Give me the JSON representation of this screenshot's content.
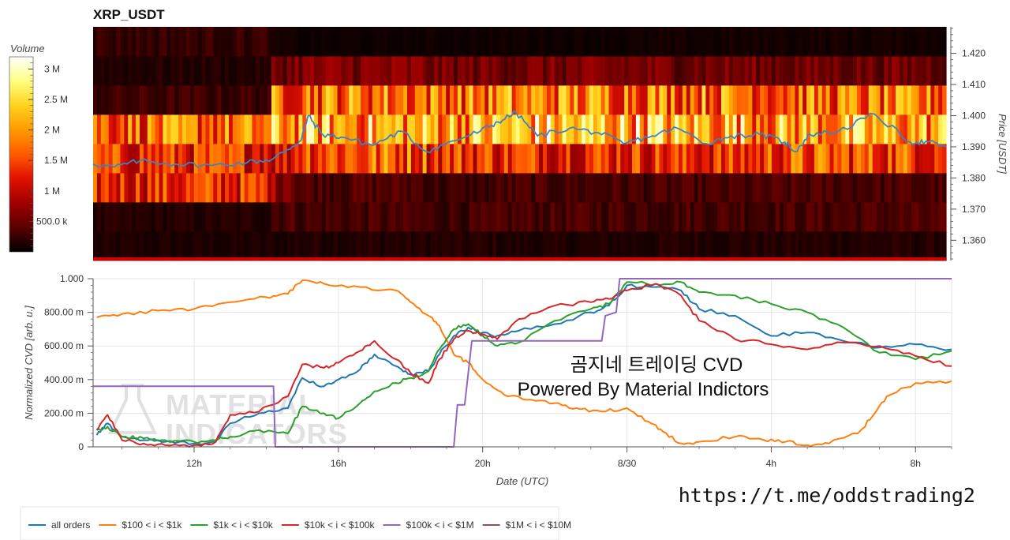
{
  "chart_data": [
    {
      "type": "heatmap",
      "title": "XRP_USDT",
      "ylabel": "Price [USDT]",
      "ylim": [
        1.3535,
        1.4285
      ],
      "y_ticks": [
        "1.360",
        "1.370",
        "1.380",
        "1.390",
        "1.400",
        "1.410",
        "1.420"
      ],
      "y_tick_values": [
        1.36,
        1.37,
        1.38,
        1.39,
        1.4,
        1.41,
        1.42
      ],
      "colorbar": {
        "label": "Volume",
        "range": [
          0,
          3200000
        ],
        "ticks": [
          "500.0 k",
          "1 M",
          "1.5 M",
          "2 M",
          "2.5 M",
          "3 M"
        ],
        "tick_values": [
          500000,
          1000000,
          1500000,
          2000000,
          2500000,
          3000000
        ],
        "palette": [
          "#000000",
          "#5a0000",
          "#a00000",
          "#e01000",
          "#ff5a00",
          "#ff9a00",
          "#ffd21e",
          "#ffff80",
          "#ffffff"
        ]
      },
      "time_range_hours": [
        9.2,
        33.0
      ],
      "row_levels": [
        1.356,
        1.365,
        1.375,
        1.385,
        1.395,
        1.405,
        1.415,
        1.425
      ],
      "segment_hours": [
        9.2,
        14.2,
        14.8,
        18.5,
        20.5,
        25.0,
        28.0,
        33.0
      ],
      "volume_profile": [
        [
          120000,
          120000,
          150000,
          150000,
          130000,
          150000,
          150000
        ],
        [
          150000,
          330000,
          300000,
          270000,
          310000,
          310000,
          320000
        ],
        [
          1300000,
          750000,
          350000,
          250000,
          300000,
          300000,
          320000
        ],
        [
          1300000,
          1100000,
          1600000,
          1400000,
          1350000,
          1300000,
          1500000
        ],
        [
          1650000,
          2000000,
          2050000,
          2100000,
          2200000,
          2100000,
          2000000
        ],
        [
          260000,
          1700000,
          1750000,
          1700000,
          1800000,
          1750000,
          1650000
        ],
        [
          150000,
          520000,
          600000,
          520000,
          540000,
          520000,
          500000
        ],
        [
          230000,
          80000,
          60000,
          70000,
          70000,
          80000,
          90000
        ]
      ],
      "series": [
        {
          "name": "Price",
          "color": "#3c83c6",
          "x": [
            9.2,
            9.8,
            10.5,
            11.5,
            12.5,
            13.5,
            14.2,
            14.6,
            15.0,
            15.2,
            15.6,
            16.2,
            17.0,
            17.8,
            18.5,
            19.3,
            20.0,
            20.5,
            21.0,
            21.6,
            22.5,
            23.3,
            24.0,
            24.8,
            25.5,
            26.3,
            27.0,
            27.8,
            28.5,
            28.8,
            29.2,
            30.0,
            31.0,
            32.0,
            32.5,
            33.0
          ],
          "y": [
            1.3845,
            1.3835,
            1.3855,
            1.3845,
            1.384,
            1.385,
            1.386,
            1.389,
            1.392,
            1.4,
            1.394,
            1.393,
            1.3905,
            1.395,
            1.3885,
            1.392,
            1.395,
            1.398,
            1.401,
            1.3935,
            1.396,
            1.3945,
            1.391,
            1.3935,
            1.396,
            1.391,
            1.3935,
            1.394,
            1.3915,
            1.3885,
            1.394,
            1.395,
            1.4005,
            1.3915,
            1.3915,
            1.39
          ]
        }
      ]
    },
    {
      "type": "line",
      "title": "",
      "xlabel": "Date (UTC)",
      "ylabel": "Normalized CVD [arb. u.]",
      "ylim": [
        0,
        1.0
      ],
      "xlim_hours": [
        9.2,
        33.0
      ],
      "x_ticks": [
        "12h",
        "16h",
        "20h",
        "8/30",
        "4h",
        "8h"
      ],
      "x_tick_hours": [
        12,
        16,
        20,
        24,
        28,
        32
      ],
      "y_ticks": [
        "0",
        "200.00 m",
        "400.00 m",
        "600.00 m",
        "800.00 m",
        "1.000"
      ],
      "y_tick_values": [
        0,
        0.2,
        0.4,
        0.6,
        0.8,
        1.0
      ],
      "legend_placement": "bottom-left",
      "grid": true,
      "series": [
        {
          "name": "all orders",
          "color": "#1f77b4",
          "x": [
            9.3,
            9.6,
            10.0,
            10.6,
            11.2,
            12.0,
            12.6,
            13.0,
            13.8,
            14.6,
            15.0,
            15.6,
            16.0,
            16.6,
            17.0,
            17.6,
            18.0,
            18.5,
            18.8,
            19.2,
            19.6,
            20.0,
            20.4,
            21.0,
            22.0,
            23.0,
            23.5,
            24.0,
            24.8,
            25.5,
            26.0,
            27.0,
            28.0,
            29.0,
            30.0,
            31.0,
            32.0,
            33.0
          ],
          "y": [
            0.07,
            0.14,
            0.06,
            0.04,
            0.03,
            0.02,
            0.03,
            0.14,
            0.2,
            0.23,
            0.41,
            0.36,
            0.4,
            0.46,
            0.55,
            0.48,
            0.43,
            0.45,
            0.55,
            0.66,
            0.71,
            0.68,
            0.66,
            0.69,
            0.73,
            0.8,
            0.84,
            0.96,
            0.95,
            0.93,
            0.82,
            0.78,
            0.66,
            0.68,
            0.63,
            0.59,
            0.61,
            0.58
          ]
        },
        {
          "name": "$100 < i < $1k",
          "color": "#ff7f0e",
          "x": [
            9.3,
            10.0,
            11.0,
            12.0,
            13.0,
            14.0,
            14.6,
            15.0,
            15.6,
            16.6,
            17.6,
            18.0,
            18.5,
            18.8,
            19.2,
            19.6,
            20.0,
            20.6,
            21.2,
            22.0,
            22.6,
            23.3,
            24.0,
            24.6,
            25.0,
            25.5,
            26.0,
            27.0,
            27.8,
            28.4,
            29.0,
            29.6,
            30.4,
            30.8,
            31.2,
            32.0,
            33.0
          ],
          "y": [
            0.77,
            0.79,
            0.81,
            0.82,
            0.86,
            0.89,
            0.91,
            0.99,
            0.97,
            0.95,
            0.93,
            0.86,
            0.78,
            0.72,
            0.55,
            0.5,
            0.4,
            0.31,
            0.28,
            0.26,
            0.23,
            0.21,
            0.23,
            0.15,
            0.09,
            0.02,
            0.03,
            0.06,
            0.04,
            0.03,
            0.01,
            0.02,
            0.08,
            0.18,
            0.3,
            0.38,
            0.39
          ]
        },
        {
          "name": "$1k < i < $10k",
          "color": "#2ca02c",
          "x": [
            9.3,
            9.6,
            10.0,
            10.6,
            11.2,
            12.0,
            12.6,
            13.0,
            13.8,
            14.6,
            15.0,
            15.6,
            16.0,
            16.6,
            17.0,
            17.6,
            18.0,
            18.5,
            18.8,
            19.2,
            19.6,
            20.0,
            20.4,
            21.0,
            22.0,
            23.0,
            23.5,
            24.0,
            24.8,
            25.5,
            26.0,
            27.0,
            28.0,
            29.0,
            30.0,
            31.0,
            32.0,
            33.0
          ],
          "y": [
            0.1,
            0.12,
            0.06,
            0.05,
            0.04,
            0.03,
            0.04,
            0.06,
            0.1,
            0.08,
            0.24,
            0.2,
            0.17,
            0.26,
            0.33,
            0.38,
            0.41,
            0.45,
            0.58,
            0.7,
            0.73,
            0.66,
            0.6,
            0.62,
            0.75,
            0.82,
            0.85,
            0.98,
            0.97,
            0.98,
            0.92,
            0.9,
            0.85,
            0.8,
            0.71,
            0.56,
            0.52,
            0.57
          ]
        },
        {
          "name": "$10k < i < $100k",
          "color": "#d62728",
          "x": [
            9.3,
            9.6,
            10.0,
            10.6,
            11.2,
            12.0,
            12.6,
            13.0,
            13.8,
            14.6,
            15.0,
            15.6,
            16.0,
            16.6,
            17.0,
            17.6,
            18.0,
            18.5,
            18.8,
            19.2,
            19.6,
            20.0,
            20.4,
            21.0,
            22.0,
            23.0,
            23.5,
            24.0,
            24.8,
            25.5,
            26.0,
            27.0,
            28.0,
            29.0,
            30.0,
            31.0,
            32.0,
            33.0
          ],
          "y": [
            0.1,
            0.19,
            0.04,
            0.02,
            0.01,
            0.01,
            0.03,
            0.19,
            0.21,
            0.3,
            0.49,
            0.47,
            0.5,
            0.57,
            0.63,
            0.52,
            0.44,
            0.38,
            0.52,
            0.64,
            0.69,
            0.67,
            0.64,
            0.76,
            0.84,
            0.86,
            0.88,
            0.93,
            0.97,
            0.9,
            0.75,
            0.64,
            0.61,
            0.58,
            0.62,
            0.6,
            0.54,
            0.48
          ]
        },
        {
          "name": "$100k < i < $1M",
          "color": "#9467bd",
          "x": [
            9.2,
            14.2,
            14.25,
            18.8,
            19.2,
            19.3,
            19.5,
            19.7,
            23.3,
            23.4,
            23.7,
            23.8,
            33.0
          ],
          "y": [
            0.36,
            0.36,
            0.0,
            0.0,
            0.0,
            0.25,
            0.25,
            0.63,
            0.63,
            0.78,
            0.8,
            1.0,
            1.0
          ]
        },
        {
          "name": "$1M < i < $10M",
          "color": "#8c564b",
          "x": [],
          "y": []
        }
      ]
    }
  ],
  "overlay": {
    "line1": "곰지네 트레이딩 CVD",
    "line2": "Powered By Material Indictors",
    "url": "https://t.me/oddstrading2"
  },
  "watermark": {
    "line1": "MATERIAL",
    "line2": "INDICATORS"
  }
}
